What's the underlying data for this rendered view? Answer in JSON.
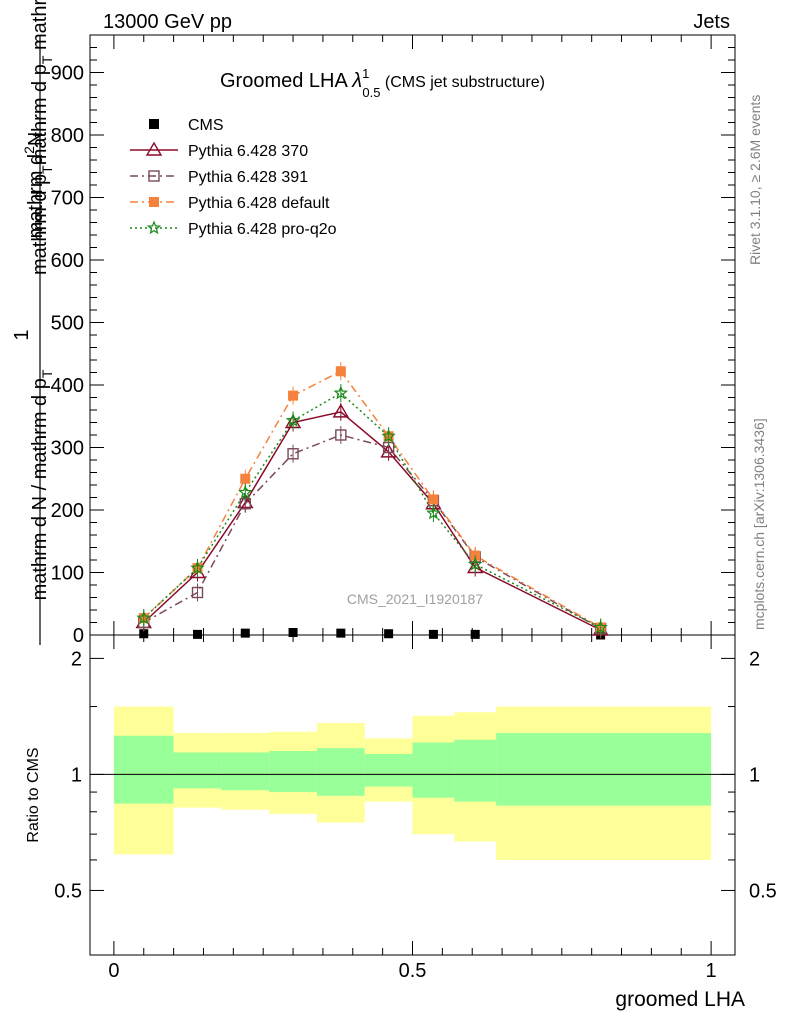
{
  "header": {
    "left": "13000 GeV pp",
    "right": "Jets"
  },
  "side_labels": {
    "rivet": "Rivet 3.1.10, ≥ 2.6M events",
    "mcplots": "mcplots.cern.ch [arXiv:1306.3436]"
  },
  "watermark": "CMS_2021_I1920187",
  "title": {
    "main": "Groomed LHA ",
    "lambda": "λ",
    "sup": "1",
    "sub": "0.5",
    "tail": " (CMS jet substructure)"
  },
  "ylabel": {
    "prefix": "1",
    "denominator": "mathrm d N / mathrm d p",
    "den_sub": "T",
    "num_part1": "mathrm d",
    "num_part1b": "N",
    "num_part2": " mathrm d p",
    "num_sub": "T",
    "num_part3": " mathrm d lambda",
    "lead": "mathrm d",
    "lead_sup": "2",
    "num_mid": "mathrm d p",
    "num_mid_sub": "T",
    "num_mid2": "mathrm d p",
    "num_mid2_sub": "T",
    "num_tail": " mathrm d lambda"
  },
  "ratio_ylabel": "Ratio to CMS",
  "xlabel": "groomed LHA",
  "colors": {
    "cms": "#000000",
    "p370": "#8b0a2a",
    "p391": "#7b4a5a",
    "pdefault": "#f5823c",
    "pq2o": "#1a8a1a",
    "band_inner": "#99ff99",
    "band_outer": "#ffff99"
  },
  "chart_data": {
    "type": "line",
    "xlim": [
      -0.04,
      1.04
    ],
    "ylim": [
      0,
      960
    ],
    "ratio_ylim": [
      0.34,
      2.3
    ],
    "x_ticks": [
      "0",
      "0.5",
      "1"
    ],
    "y_ticks": [
      "0",
      "100",
      "200",
      "300",
      "400",
      "500",
      "600",
      "700",
      "800",
      "900"
    ],
    "ratio_ticks": [
      "0.5",
      "1",
      "2"
    ],
    "legend": [
      "CMS",
      "Pythia 6.428 370",
      "Pythia 6.428 391",
      "Pythia 6.428 default",
      "Pythia 6.428 pro-q2o"
    ],
    "x": [
      0.05,
      0.14,
      0.22,
      0.3,
      0.38,
      0.46,
      0.535,
      0.605,
      0.815
    ],
    "series": [
      {
        "name": "CMS",
        "values": [
          2,
          1,
          3,
          4,
          3,
          2,
          1,
          1,
          0
        ]
      },
      {
        "name": "Pythia 6.428 370",
        "values": [
          20,
          100,
          212,
          340,
          357,
          293,
          210,
          108,
          8
        ]
      },
      {
        "name": "Pythia 6.428 391",
        "values": [
          20,
          68,
          210,
          290,
          320,
          300,
          215,
          125,
          10
        ]
      },
      {
        "name": "Pythia 6.428 default",
        "values": [
          27,
          107,
          250,
          383,
          422,
          318,
          217,
          127,
          12
        ]
      },
      {
        "name": "Pythia 6.428 pro-q2o",
        "values": [
          27,
          107,
          228,
          343,
          387,
          318,
          195,
          113,
          12
        ]
      }
    ],
    "ratio_bands": [
      {
        "x": [
          0.0,
          0.1
        ],
        "inner": [
          0.84,
          1.26
        ],
        "outer": [
          0.62,
          1.5
        ]
      },
      {
        "x": [
          0.1,
          0.18
        ],
        "inner": [
          0.92,
          1.14
        ],
        "outer": [
          0.82,
          1.28
        ]
      },
      {
        "x": [
          0.18,
          0.26
        ],
        "inner": [
          0.91,
          1.14
        ],
        "outer": [
          0.81,
          1.28
        ]
      },
      {
        "x": [
          0.26,
          0.34
        ],
        "inner": [
          0.9,
          1.15
        ],
        "outer": [
          0.79,
          1.29
        ]
      },
      {
        "x": [
          0.34,
          0.42
        ],
        "inner": [
          0.88,
          1.17
        ],
        "outer": [
          0.75,
          1.36
        ]
      },
      {
        "x": [
          0.42,
          0.5
        ],
        "inner": [
          0.93,
          1.13
        ],
        "outer": [
          0.85,
          1.24
        ]
      },
      {
        "x": [
          0.5,
          0.57
        ],
        "inner": [
          0.87,
          1.21
        ],
        "outer": [
          0.7,
          1.42
        ]
      },
      {
        "x": [
          0.57,
          0.64
        ],
        "inner": [
          0.85,
          1.23
        ],
        "outer": [
          0.67,
          1.45
        ]
      },
      {
        "x": [
          0.64,
          1.0
        ],
        "inner": [
          0.83,
          1.28
        ],
        "outer": [
          0.6,
          1.5
        ]
      }
    ]
  }
}
